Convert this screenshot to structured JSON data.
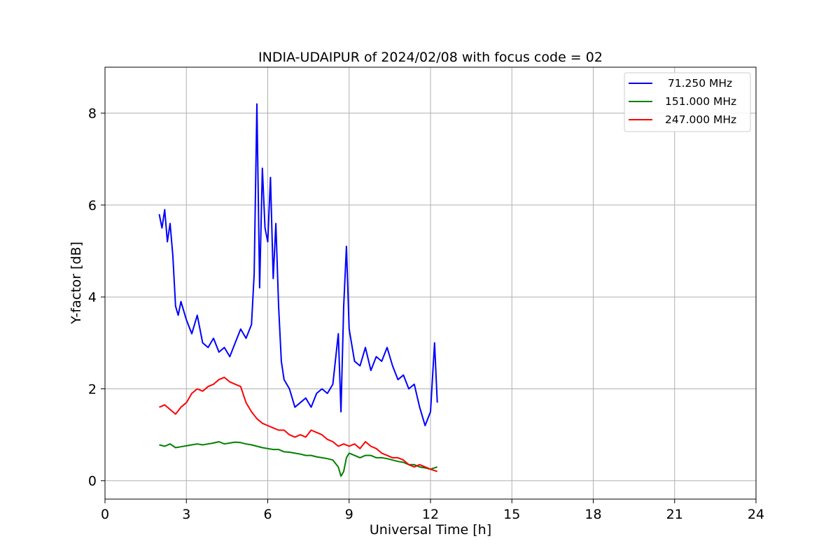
{
  "chart_data": {
    "type": "line",
    "title": "INDIA-UDAIPUR of 2024/02/08 with focus code = 02",
    "xlabel": "Universal Time [h]",
    "ylabel": "Y-factor [dB]",
    "xlim": [
      0,
      24
    ],
    "ylim": [
      -0.4,
      9.0
    ],
    "xticks": [
      "0",
      "3",
      "6",
      "9",
      "12",
      "15",
      "18",
      "21",
      "24"
    ],
    "yticks": [
      "0",
      "2",
      "4",
      "6",
      "8"
    ],
    "grid": true,
    "legend_position": "top-right",
    "series": [
      {
        "name": "  71.250 MHz",
        "color": "#0000ff",
        "points": [
          [
            2.0,
            5.8
          ],
          [
            2.1,
            5.5
          ],
          [
            2.2,
            5.9
          ],
          [
            2.3,
            5.2
          ],
          [
            2.4,
            5.6
          ],
          [
            2.5,
            4.9
          ],
          [
            2.6,
            3.8
          ],
          [
            2.7,
            3.6
          ],
          [
            2.8,
            3.9
          ],
          [
            3.0,
            3.5
          ],
          [
            3.2,
            3.2
          ],
          [
            3.4,
            3.6
          ],
          [
            3.6,
            3.0
          ],
          [
            3.8,
            2.9
          ],
          [
            4.0,
            3.1
          ],
          [
            4.2,
            2.8
          ],
          [
            4.4,
            2.9
          ],
          [
            4.6,
            2.7
          ],
          [
            4.8,
            3.0
          ],
          [
            5.0,
            3.3
          ],
          [
            5.2,
            3.1
          ],
          [
            5.4,
            3.4
          ],
          [
            5.5,
            4.5
          ],
          [
            5.6,
            8.2
          ],
          [
            5.7,
            4.2
          ],
          [
            5.8,
            6.8
          ],
          [
            5.9,
            5.5
          ],
          [
            6.0,
            5.2
          ],
          [
            6.1,
            6.6
          ],
          [
            6.2,
            4.4
          ],
          [
            6.3,
            5.6
          ],
          [
            6.4,
            3.8
          ],
          [
            6.5,
            2.6
          ],
          [
            6.6,
            2.2
          ],
          [
            6.8,
            2.0
          ],
          [
            7.0,
            1.6
          ],
          [
            7.2,
            1.7
          ],
          [
            7.4,
            1.8
          ],
          [
            7.6,
            1.6
          ],
          [
            7.8,
            1.9
          ],
          [
            8.0,
            2.0
          ],
          [
            8.2,
            1.9
          ],
          [
            8.4,
            2.1
          ],
          [
            8.6,
            3.2
          ],
          [
            8.7,
            1.5
          ],
          [
            8.8,
            3.8
          ],
          [
            8.9,
            5.1
          ],
          [
            9.0,
            3.3
          ],
          [
            9.2,
            2.6
          ],
          [
            9.4,
            2.5
          ],
          [
            9.6,
            2.9
          ],
          [
            9.8,
            2.4
          ],
          [
            10.0,
            2.7
          ],
          [
            10.2,
            2.6
          ],
          [
            10.4,
            2.9
          ],
          [
            10.6,
            2.5
          ],
          [
            10.8,
            2.2
          ],
          [
            11.0,
            2.3
          ],
          [
            11.2,
            2.0
          ],
          [
            11.4,
            2.1
          ],
          [
            11.6,
            1.6
          ],
          [
            11.8,
            1.2
          ],
          [
            12.0,
            1.5
          ],
          [
            12.15,
            3.0
          ],
          [
            12.25,
            1.7
          ]
        ]
      },
      {
        "name": "151.000 MHz",
        "color": "#008000",
        "points": [
          [
            2.0,
            0.78
          ],
          [
            2.2,
            0.75
          ],
          [
            2.4,
            0.8
          ],
          [
            2.6,
            0.72
          ],
          [
            2.8,
            0.74
          ],
          [
            3.0,
            0.76
          ],
          [
            3.2,
            0.78
          ],
          [
            3.4,
            0.8
          ],
          [
            3.6,
            0.78
          ],
          [
            3.8,
            0.8
          ],
          [
            4.0,
            0.82
          ],
          [
            4.2,
            0.85
          ],
          [
            4.4,
            0.8
          ],
          [
            4.6,
            0.82
          ],
          [
            4.8,
            0.84
          ],
          [
            5.0,
            0.83
          ],
          [
            5.2,
            0.8
          ],
          [
            5.4,
            0.78
          ],
          [
            5.6,
            0.75
          ],
          [
            5.8,
            0.72
          ],
          [
            6.0,
            0.7
          ],
          [
            6.2,
            0.68
          ],
          [
            6.4,
            0.68
          ],
          [
            6.6,
            0.63
          ],
          [
            6.8,
            0.62
          ],
          [
            7.0,
            0.6
          ],
          [
            7.2,
            0.58
          ],
          [
            7.4,
            0.55
          ],
          [
            7.6,
            0.55
          ],
          [
            7.8,
            0.52
          ],
          [
            8.0,
            0.5
          ],
          [
            8.2,
            0.48
          ],
          [
            8.4,
            0.45
          ],
          [
            8.6,
            0.3
          ],
          [
            8.7,
            0.1
          ],
          [
            8.8,
            0.2
          ],
          [
            8.9,
            0.5
          ],
          [
            9.0,
            0.6
          ],
          [
            9.2,
            0.55
          ],
          [
            9.4,
            0.5
          ],
          [
            9.6,
            0.55
          ],
          [
            9.8,
            0.55
          ],
          [
            10.0,
            0.5
          ],
          [
            10.2,
            0.5
          ],
          [
            10.4,
            0.48
          ],
          [
            10.6,
            0.45
          ],
          [
            10.8,
            0.42
          ],
          [
            11.0,
            0.4
          ],
          [
            11.2,
            0.35
          ],
          [
            11.4,
            0.35
          ],
          [
            11.6,
            0.3
          ],
          [
            11.8,
            0.28
          ],
          [
            12.0,
            0.25
          ],
          [
            12.25,
            0.3
          ]
        ]
      },
      {
        "name": "247.000 MHz",
        "color": "#ff0000",
        "points": [
          [
            2.0,
            1.6
          ],
          [
            2.2,
            1.65
          ],
          [
            2.4,
            1.55
          ],
          [
            2.6,
            1.45
          ],
          [
            2.8,
            1.6
          ],
          [
            3.0,
            1.7
          ],
          [
            3.2,
            1.9
          ],
          [
            3.4,
            2.0
          ],
          [
            3.6,
            1.95
          ],
          [
            3.8,
            2.05
          ],
          [
            4.0,
            2.1
          ],
          [
            4.2,
            2.2
          ],
          [
            4.4,
            2.25
          ],
          [
            4.6,
            2.15
          ],
          [
            4.8,
            2.1
          ],
          [
            5.0,
            2.05
          ],
          [
            5.2,
            1.7
          ],
          [
            5.4,
            1.5
          ],
          [
            5.6,
            1.35
          ],
          [
            5.8,
            1.25
          ],
          [
            6.0,
            1.2
          ],
          [
            6.2,
            1.15
          ],
          [
            6.4,
            1.1
          ],
          [
            6.6,
            1.1
          ],
          [
            6.8,
            1.0
          ],
          [
            7.0,
            0.95
          ],
          [
            7.2,
            1.0
          ],
          [
            7.4,
            0.95
          ],
          [
            7.6,
            1.1
          ],
          [
            7.8,
            1.05
          ],
          [
            8.0,
            1.0
          ],
          [
            8.2,
            0.9
          ],
          [
            8.4,
            0.85
          ],
          [
            8.6,
            0.75
          ],
          [
            8.8,
            0.8
          ],
          [
            9.0,
            0.75
          ],
          [
            9.2,
            0.8
          ],
          [
            9.4,
            0.7
          ],
          [
            9.6,
            0.85
          ],
          [
            9.8,
            0.75
          ],
          [
            10.0,
            0.7
          ],
          [
            10.2,
            0.6
          ],
          [
            10.4,
            0.55
          ],
          [
            10.6,
            0.5
          ],
          [
            10.8,
            0.5
          ],
          [
            11.0,
            0.45
          ],
          [
            11.2,
            0.35
          ],
          [
            11.4,
            0.3
          ],
          [
            11.6,
            0.35
          ],
          [
            11.8,
            0.3
          ],
          [
            12.0,
            0.25
          ],
          [
            12.25,
            0.2
          ]
        ]
      }
    ]
  }
}
